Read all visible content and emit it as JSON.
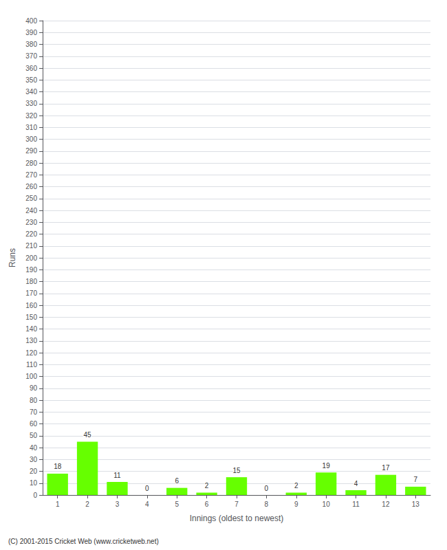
{
  "chart_data": {
    "type": "bar",
    "xlabel": "Innings (oldest to newest)",
    "ylabel": "Runs",
    "categories": [
      1,
      2,
      3,
      4,
      5,
      6,
      7,
      8,
      9,
      10,
      11,
      12,
      13
    ],
    "values": [
      18,
      45,
      11,
      0,
      6,
      2,
      15,
      0,
      2,
      19,
      4,
      17,
      7
    ],
    "color": "#66ff00",
    "ylim": [
      0,
      400
    ],
    "yticks": [
      0,
      10,
      20,
      30,
      40,
      50,
      60,
      70,
      80,
      90,
      100,
      110,
      120,
      130,
      140,
      150,
      160,
      170,
      180,
      190,
      200,
      210,
      220,
      230,
      240,
      250,
      260,
      270,
      280,
      290,
      300,
      310,
      320,
      330,
      340,
      350,
      360,
      370,
      380,
      390,
      400
    ],
    "grid": true,
    "data_labels": true,
    "annotation": "(C) 2001-2015 Cricket Web (www.cricketweb.net)"
  }
}
